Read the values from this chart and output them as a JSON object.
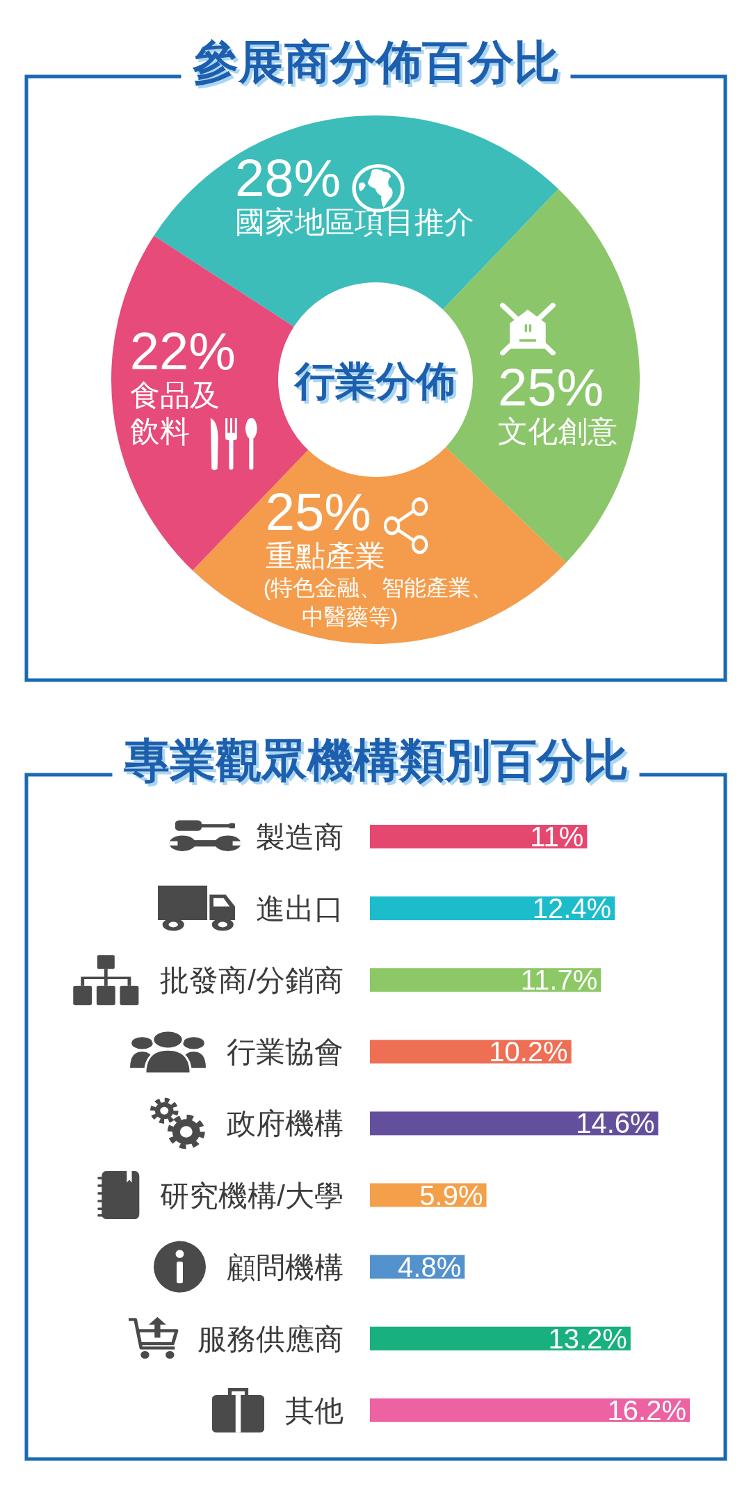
{
  "chart_data": [
    {
      "type": "donut",
      "title": "參展商分佈百分比",
      "subtitle": "行業分佈",
      "categories": [
        "國家地區項目推介",
        "文化創意",
        "重點產業 (特色金融、智能產業、中醫藥等)",
        "食品及飲料"
      ],
      "values": [
        28,
        25,
        25,
        22
      ],
      "colors": [
        "#3dbdb9",
        "#8cc66b",
        "#f49c4b",
        "#e64b79"
      ],
      "value_labels": [
        "28%",
        "25%",
        "25%",
        "22%"
      ]
    },
    {
      "type": "bar",
      "orientation": "horizontal",
      "title": "專業觀眾機構類別百分比",
      "categories": [
        "製造商",
        "進出口",
        "批發商/分銷商",
        "行業協會",
        "政府機構",
        "研究機構/大學",
        "顧問機構",
        "服務供應商",
        "其他"
      ],
      "values": [
        11,
        12.4,
        11.7,
        10.2,
        14.6,
        5.9,
        4.8,
        13.2,
        16.2
      ],
      "colors": [
        "#e5486f",
        "#1cbccb",
        "#8cc866",
        "#ef6f55",
        "#634f9c",
        "#f4a04a",
        "#5392cc",
        "#18b07e",
        "#ec62a2"
      ],
      "value_labels": [
        "11%",
        "12.4%",
        "11.7%",
        "10.2%",
        "14.6%",
        "5.9%",
        "4.8%",
        "13.2%",
        "16.2%"
      ]
    }
  ]
}
